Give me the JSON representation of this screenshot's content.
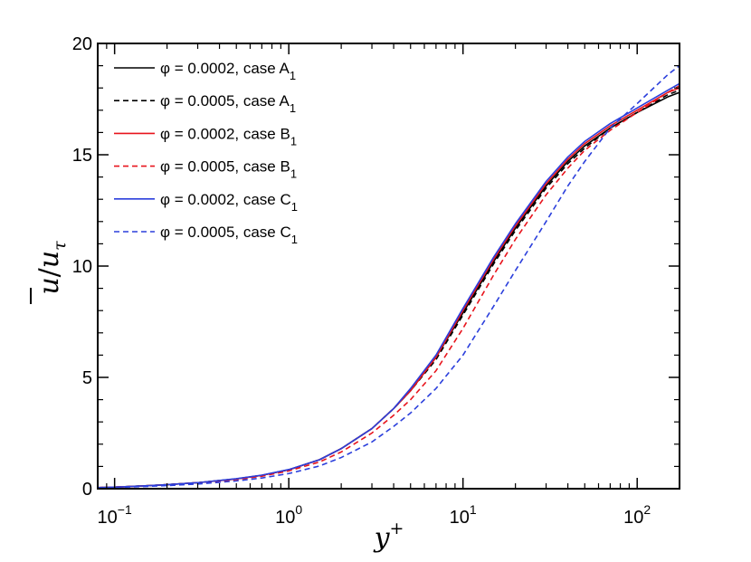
{
  "chart_data": {
    "type": "line",
    "xscale": "log",
    "xlim": [
      0.08,
      175
    ],
    "ylim": [
      0,
      20
    ],
    "xticks": [
      0.1,
      1,
      10,
      100
    ],
    "xtick_labels": [
      {
        "base": "10",
        "exp": "−1"
      },
      {
        "base": "10",
        "exp": "0"
      },
      {
        "base": "10",
        "exp": "1"
      },
      {
        "base": "10",
        "exp": "2"
      }
    ],
    "yticks": [
      0,
      5,
      10,
      15,
      20
    ],
    "ytick_labels": [
      "0",
      "5",
      "10",
      "15",
      "20"
    ],
    "xlabel": {
      "main": "y",
      "sup": "+"
    },
    "ylabel": {
      "main": "u",
      "sep": "/",
      "second": "u",
      "sub": "τ"
    },
    "legend_position": "top-left",
    "series": [
      {
        "name": "φ = 0.0002, case A",
        "label_main": "φ = 0.0002, case A",
        "label_sub": "1",
        "color": "#000000",
        "dash": "solid",
        "x": [
          0.08,
          0.1,
          0.15,
          0.2,
          0.3,
          0.5,
          0.7,
          1.0,
          1.5,
          2.0,
          3.0,
          4.0,
          5.0,
          7.0,
          10.0,
          15.0,
          20.0,
          30.0,
          40.0,
          50.0,
          70.0,
          100.0,
          150.0,
          175.0
        ],
        "y": [
          0.05,
          0.07,
          0.13,
          0.18,
          0.27,
          0.44,
          0.6,
          0.85,
          1.3,
          1.8,
          2.7,
          3.6,
          4.4,
          5.9,
          7.9,
          10.2,
          11.7,
          13.6,
          14.7,
          15.4,
          16.2,
          16.9,
          17.6,
          17.8
        ]
      },
      {
        "name": "φ = 0.0005, case A",
        "label_main": "φ = 0.0005, case A",
        "label_sub": "1",
        "color": "#000000",
        "dash": "dashed",
        "x": [
          0.08,
          0.1,
          0.15,
          0.2,
          0.3,
          0.5,
          0.7,
          1.0,
          1.5,
          2.0,
          3.0,
          4.0,
          5.0,
          7.0,
          10.0,
          15.0,
          20.0,
          30.0,
          40.0,
          50.0,
          70.0,
          100.0,
          150.0,
          175.0
        ],
        "y": [
          0.05,
          0.07,
          0.13,
          0.18,
          0.27,
          0.44,
          0.6,
          0.85,
          1.3,
          1.8,
          2.7,
          3.6,
          4.4,
          5.8,
          7.8,
          10.1,
          11.6,
          13.5,
          14.6,
          15.3,
          16.2,
          16.9,
          17.7,
          17.9
        ]
      },
      {
        "name": "φ = 0.0002, case B",
        "label_main": "φ = 0.0002, case B",
        "label_sub": "1",
        "color": "#e8141c",
        "dash": "solid",
        "x": [
          0.08,
          0.1,
          0.15,
          0.2,
          0.3,
          0.5,
          0.7,
          1.0,
          1.5,
          2.0,
          3.0,
          4.0,
          5.0,
          7.0,
          10.0,
          15.0,
          20.0,
          30.0,
          40.0,
          50.0,
          70.0,
          100.0,
          150.0,
          175.0
        ],
        "y": [
          0.05,
          0.07,
          0.13,
          0.18,
          0.27,
          0.44,
          0.6,
          0.85,
          1.3,
          1.8,
          2.7,
          3.6,
          4.4,
          5.9,
          8.0,
          10.3,
          11.8,
          13.7,
          14.8,
          15.5,
          16.3,
          17.0,
          17.8,
          18.0
        ]
      },
      {
        "name": "φ = 0.0005, case B",
        "label_main": "φ = 0.0005, case B",
        "label_sub": "1",
        "color": "#e8141c",
        "dash": "dashed",
        "x": [
          0.08,
          0.1,
          0.15,
          0.2,
          0.3,
          0.5,
          0.7,
          1.0,
          1.5,
          2.0,
          3.0,
          4.0,
          5.0,
          7.0,
          10.0,
          15.0,
          20.0,
          30.0,
          40.0,
          50.0,
          70.0,
          100.0,
          150.0,
          175.0
        ],
        "y": [
          0.05,
          0.07,
          0.12,
          0.17,
          0.25,
          0.41,
          0.56,
          0.8,
          1.2,
          1.65,
          2.5,
          3.3,
          4.0,
          5.3,
          7.2,
          9.6,
          11.2,
          13.2,
          14.4,
          15.2,
          16.1,
          16.9,
          17.8,
          18.1
        ]
      },
      {
        "name": "φ = 0.0002, case C",
        "label_main": "φ = 0.0002, case C",
        "label_sub": "1",
        "color": "#2b3fdc",
        "dash": "solid",
        "x": [
          0.08,
          0.1,
          0.15,
          0.2,
          0.3,
          0.5,
          0.7,
          1.0,
          1.5,
          2.0,
          3.0,
          4.0,
          5.0,
          7.0,
          10.0,
          15.0,
          20.0,
          30.0,
          40.0,
          50.0,
          70.0,
          100.0,
          150.0,
          175.0
        ],
        "y": [
          0.05,
          0.07,
          0.13,
          0.18,
          0.27,
          0.45,
          0.61,
          0.86,
          1.3,
          1.8,
          2.7,
          3.6,
          4.5,
          6.0,
          8.1,
          10.4,
          11.9,
          13.8,
          14.9,
          15.6,
          16.4,
          17.1,
          17.9,
          18.2
        ]
      },
      {
        "name": "φ = 0.0005, case C",
        "label_main": "φ = 0.0005, case C",
        "label_sub": "1",
        "color": "#2b3fdc",
        "dash": "dashed",
        "x": [
          0.08,
          0.1,
          0.15,
          0.2,
          0.3,
          0.5,
          0.7,
          1.0,
          1.5,
          2.0,
          3.0,
          4.0,
          5.0,
          7.0,
          10.0,
          15.0,
          20.0,
          30.0,
          40.0,
          50.0,
          70.0,
          100.0,
          150.0,
          175.0
        ],
        "y": [
          0.04,
          0.06,
          0.1,
          0.14,
          0.21,
          0.35,
          0.48,
          0.68,
          1.02,
          1.4,
          2.1,
          2.8,
          3.4,
          4.5,
          6.0,
          8.2,
          9.8,
          12.0,
          13.6,
          14.7,
          16.2,
          17.3,
          18.6,
          19.0
        ]
      }
    ]
  }
}
